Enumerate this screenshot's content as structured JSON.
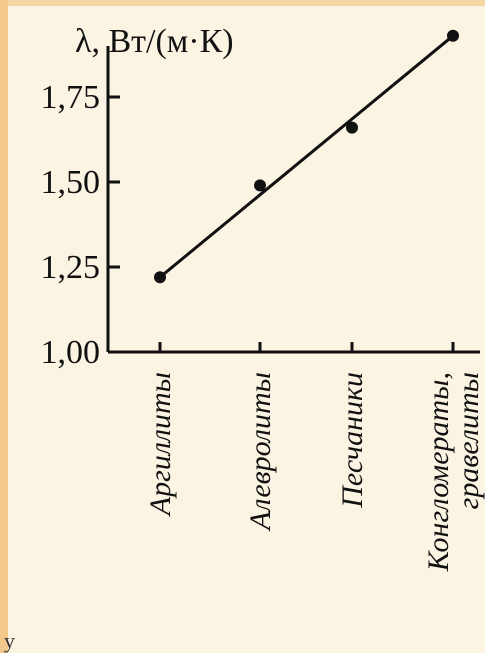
{
  "chart_data": {
    "type": "scatter",
    "ylabel": "λ, Вт/(м·К)",
    "xlabel": "",
    "categories": [
      "Аргиллиты",
      "Алевролиты",
      "Песчаники",
      "Конгломераты, гравелиты"
    ],
    "category_lines": [
      [
        "Аргиллиты"
      ],
      [
        "Алевролиты"
      ],
      [
        "Песчаники"
      ],
      [
        "Конгломераты,",
        "гравелиты"
      ]
    ],
    "values": [
      1.22,
      1.49,
      1.66,
      1.93
    ],
    "yticks": [
      "1,00",
      "1,25",
      "1,50",
      "1,75"
    ],
    "ytick_values": [
      1.0,
      1.25,
      1.5,
      1.75
    ],
    "ylim": [
      1.0,
      1.9
    ],
    "trendline": {
      "start": 1.22,
      "end": 1.93
    },
    "grid": false,
    "legend": "none"
  },
  "corner_text": "у",
  "colors": {
    "background": "#fbf4e3",
    "ink": "#111111",
    "accent_strip": "#f2c98a"
  }
}
